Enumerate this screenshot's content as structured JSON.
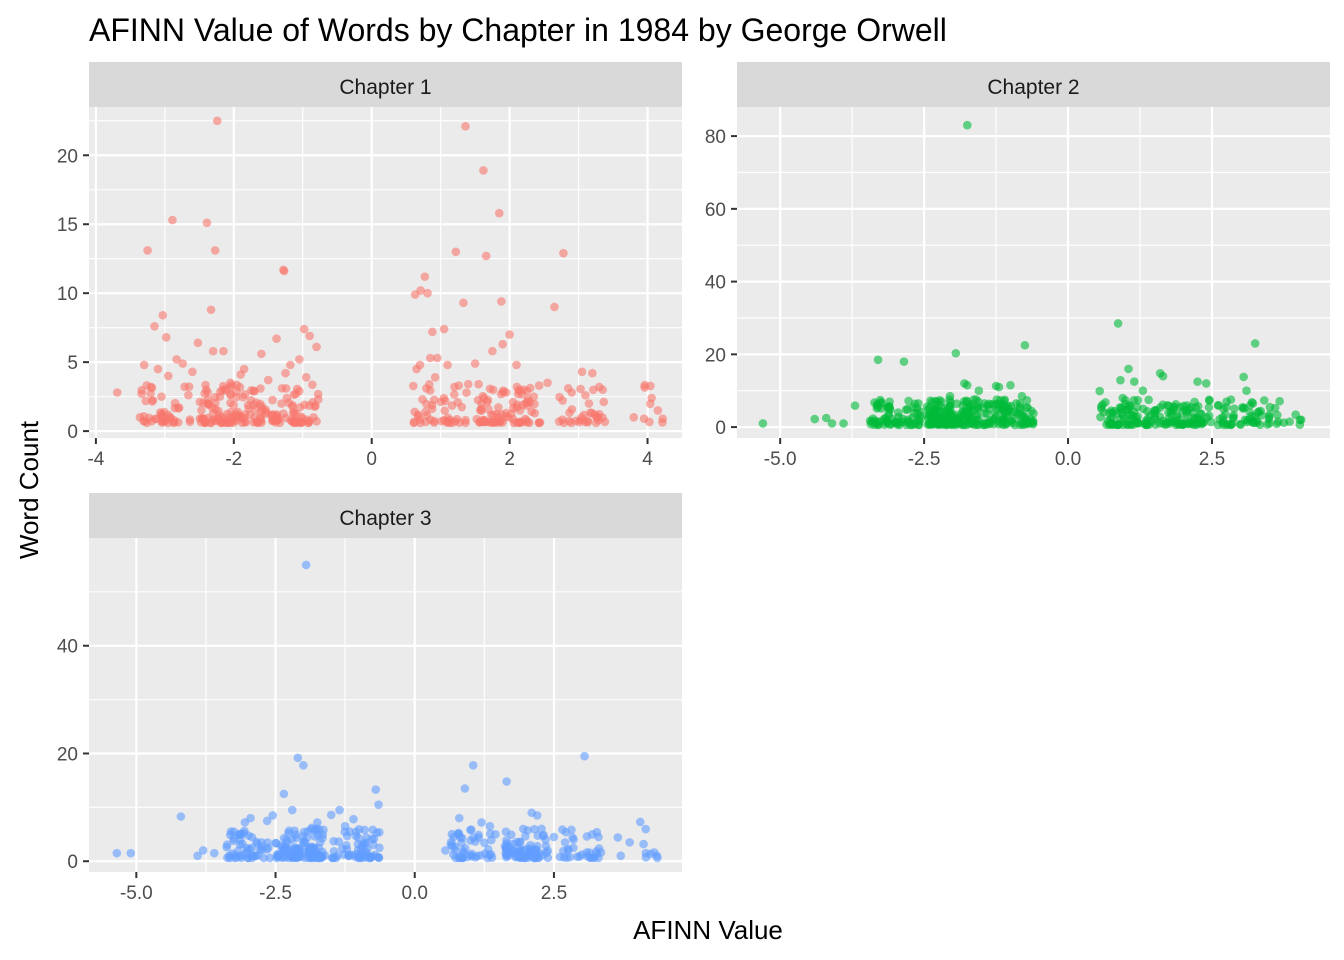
{
  "chart_data": {
    "type": "scatter",
    "title": "AFINN Value of Words by Chapter in 1984 by George Orwell",
    "xlabel": "AFINN Value",
    "ylabel": "Word Count",
    "grid": true,
    "legend": "none",
    "panels": [
      {
        "name": "Chapter 1",
        "color": "#F8766D",
        "xlim": [
          -4.1,
          4.5
        ],
        "ylim": [
          -0.5,
          23.5
        ],
        "x_ticks": [
          -4,
          -2,
          0,
          2,
          4
        ],
        "x_tick_labels": [
          "-4",
          "-2",
          "0",
          "2",
          "4"
        ],
        "y_ticks": [
          0,
          5,
          10,
          15,
          20
        ],
        "y_tick_labels": [
          "0",
          "5",
          "10",
          "15",
          "20"
        ],
        "x": [
          -3.69,
          -3.25,
          -3.15,
          -3.03,
          -2.98,
          -2.89,
          -2.83,
          -2.74,
          -2.52,
          -2.39,
          -2.33,
          -2.27,
          -2.24,
          -1.28,
          -1.27,
          -1.38,
          -0.98,
          -0.9,
          -0.8,
          -1.05,
          -1.18,
          -1.25,
          -0.95,
          -1.6,
          -1.9,
          -2.15,
          -2.3,
          -1.85,
          -2.05,
          -2.6,
          -3.3,
          -3.1,
          -2.95,
          -3.2,
          -1.5,
          -1.7,
          -1.3,
          -1.1,
          -2.4,
          -2.2,
          0.63,
          0.71,
          0.77,
          0.81,
          0.88,
          0.95,
          1.05,
          1.22,
          1.33,
          1.36,
          1.62,
          1.66,
          1.85,
          1.88,
          1.9,
          2.0,
          2.1,
          2.65,
          2.78,
          3.05,
          3.2,
          3.3,
          3.35,
          4.06,
          4.15,
          4.22,
          0.7,
          0.85,
          1.1,
          1.5,
          1.75,
          2.2,
          2.35,
          2.9,
          3.1,
          3.8,
          3.95,
          1.4,
          0.65,
          0.92,
          1.2,
          1.55,
          1.95,
          2.25,
          2.55,
          2.85,
          3.15
        ],
        "y": [
          2.8,
          13.1,
          7.6,
          8.4,
          6.8,
          15.3,
          5.2,
          4.9,
          6.4,
          15.1,
          8.8,
          13.1,
          22.5,
          11.7,
          11.6,
          6.7,
          7.4,
          6.9,
          6.1,
          5.2,
          4.8,
          4.2,
          3.9,
          5.6,
          4.1,
          5.8,
          5.8,
          4.5,
          3.5,
          4.3,
          4.8,
          4.5,
          4.0,
          3.2,
          3.7,
          2.9,
          3.1,
          2.7,
          3.0,
          2.5,
          9.9,
          10.2,
          11.2,
          10.0,
          7.2,
          5.3,
          7.4,
          13.0,
          9.3,
          22.1,
          18.9,
          12.7,
          15.8,
          9.4,
          6.3,
          7.0,
          4.8,
          9.0,
          12.9,
          4.3,
          4.2,
          3.2,
          3.0,
          2.4,
          1.5,
          0.9,
          4.8,
          5.3,
          4.8,
          4.9,
          5.8,
          3.0,
          2.5,
          2.8,
          2.6,
          1.0,
          0.9,
          3.4,
          4.5,
          3.9,
          3.2,
          3.4,
          2.8,
          2.9,
          3.5,
          3.1,
          2.0
        ]
      },
      {
        "name": "Chapter 2",
        "color": "#00BA38",
        "xlim": [
          -5.75,
          4.55
        ],
        "ylim": [
          -3,
          88
        ],
        "x_ticks": [
          -5.0,
          -2.5,
          0.0,
          2.5
        ],
        "x_tick_labels": [
          "-5.0",
          "-2.5",
          "0.0",
          "2.5"
        ],
        "y_ticks": [
          0,
          20,
          40,
          60,
          80
        ],
        "y_tick_labels": [
          "0",
          "20",
          "40",
          "60",
          "80"
        ],
        "x": [
          -5.3,
          -4.4,
          -4.2,
          -4.1,
          -3.9,
          -3.7,
          -3.3,
          -2.85,
          -2.2,
          -2.05,
          -1.95,
          -1.8,
          -1.75,
          -1.75,
          -1.45,
          -1.25,
          -1.2,
          -1.0,
          -0.8,
          -0.75,
          -1.55,
          -2.6,
          -3.1,
          -2.4,
          -1.4,
          -3.3,
          -2.95,
          -2.3,
          -1.1,
          -0.9,
          0.55,
          0.65,
          0.75,
          0.87,
          0.91,
          1.05,
          1.15,
          1.3,
          1.6,
          1.65,
          2.25,
          2.4,
          3.05,
          3.1,
          3.25,
          3.5,
          3.65,
          3.75,
          3.85,
          4.05,
          1.85,
          2.1,
          0.95,
          1.4,
          2.7,
          3.3,
          1.2,
          2.0
        ],
        "y": [
          1.0,
          2.2,
          2.5,
          1.0,
          1.0,
          5.9,
          18.5,
          18.0,
          7.0,
          8.5,
          20.3,
          12.0,
          11.5,
          83.0,
          6.5,
          11.3,
          11.0,
          11.5,
          8.5,
          22.5,
          10.0,
          6.5,
          7.0,
          5.5,
          6.0,
          5.5,
          4.0,
          5.0,
          7.5,
          6.5,
          9.9,
          6.8,
          4.5,
          28.5,
          12.9,
          16.0,
          12.5,
          10.0,
          14.8,
          14.0,
          12.5,
          12.0,
          13.8,
          10.0,
          23.0,
          3.5,
          1.5,
          1.2,
          1.5,
          2.0,
          5.5,
          5.0,
          8.0,
          7.5,
          5.0,
          4.0,
          5.5,
          4.5
        ]
      },
      {
        "name": "Chapter 3",
        "color": "#619CFF",
        "xlim": [
          -5.85,
          4.8
        ],
        "ylim": [
          -2,
          60
        ],
        "x_ticks": [
          -5.0,
          -2.5,
          0.0,
          2.5
        ],
        "x_tick_labels": [
          "-5.0",
          "-2.5",
          "0.0",
          "2.5"
        ],
        "y_ticks": [
          0,
          20,
          40
        ],
        "y_tick_labels": [
          "0",
          "20",
          "40"
        ],
        "x": [
          -5.35,
          -5.1,
          -4.2,
          -3.9,
          -3.8,
          -3.6,
          -3.3,
          -3.15,
          -2.95,
          -2.75,
          -2.55,
          -2.35,
          -2.1,
          -2.0,
          -1.95,
          -1.75,
          -1.35,
          -1.1,
          -0.9,
          -0.7,
          -0.65,
          -2.65,
          -1.5,
          -1.25,
          -3.05,
          -2.2,
          -1.85,
          0.55,
          0.8,
          0.9,
          1.05,
          1.2,
          1.35,
          1.65,
          1.95,
          2.1,
          2.35,
          2.5,
          2.7,
          3.05,
          3.3,
          3.7,
          4.05,
          4.15,
          4.35,
          1.0,
          1.45,
          2.2,
          2.85,
          0.7
        ],
        "y": [
          1.5,
          1.5,
          8.3,
          1.0,
          2.0,
          1.5,
          5.5,
          5.0,
          8.0,
          3.5,
          8.5,
          12.5,
          19.2,
          17.8,
          55.0,
          7.2,
          9.5,
          7.8,
          5.8,
          13.3,
          10.5,
          7.5,
          8.6,
          6.5,
          7.2,
          9.5,
          6.2,
          2.0,
          8.0,
          13.5,
          17.8,
          7.2,
          6.5,
          14.8,
          6.0,
          9.0,
          4.0,
          4.5,
          3.5,
          19.5,
          4.5,
          1.0,
          7.3,
          1.5,
          1.0,
          5.8,
          5.0,
          8.5,
          2.5,
          4.5
        ]
      }
    ]
  }
}
